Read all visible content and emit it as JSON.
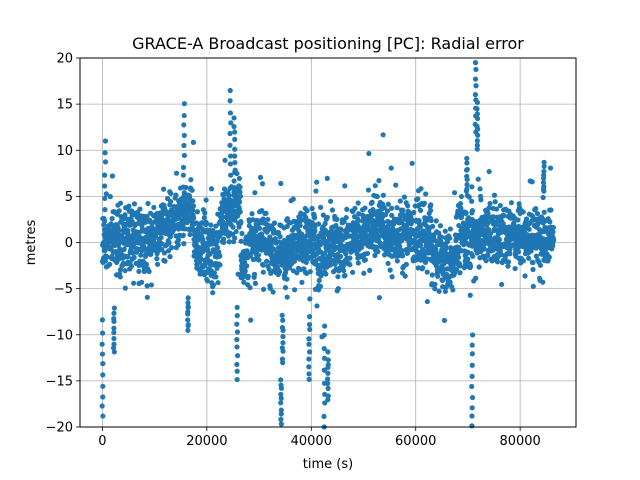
{
  "chart_data": {
    "type": "scatter",
    "title": "GRACE-A Broadcast positioning [PC]: Radial error",
    "xlabel": "time (s)",
    "ylabel": "metres",
    "xlim": [
      -4300,
      90700
    ],
    "ylim": [
      -20,
      20
    ],
    "x_ticks": [
      0,
      20000,
      40000,
      60000,
      80000
    ],
    "x_tick_labels": [
      "0",
      "20000",
      "40000",
      "60000",
      "80000"
    ],
    "y_ticks": [
      -20,
      -15,
      -10,
      -5,
      0,
      5,
      10,
      15,
      20
    ],
    "y_tick_labels": [
      "−20",
      "−15",
      "−10",
      "−5",
      "0",
      "5",
      "10",
      "15",
      "20"
    ],
    "grid": true,
    "marker_color": "#1f77b4",
    "sample_interval_s": 30,
    "segments": [
      {
        "x": [
          0,
          1500
        ],
        "center": [
          0,
          0
        ],
        "spread": 2.5
      },
      {
        "x": [
          1500,
          7000
        ],
        "center": [
          0.5,
          0.5
        ],
        "spread": 2.8
      },
      {
        "x": [
          7000,
          12000
        ],
        "center": [
          0,
          1.5
        ],
        "spread": 2.8
      },
      {
        "x": [
          12000,
          17500
        ],
        "center": [
          2,
          3.5
        ],
        "spread": 2.2
      },
      {
        "x": [
          17500,
          22500
        ],
        "center": [
          0,
          -1
        ],
        "spread": 2.8
      },
      {
        "x": [
          22500,
          26500
        ],
        "center": [
          2.5,
          4
        ],
        "spread": 2.6
      },
      {
        "x": [
          26500,
          30500
        ],
        "center": [
          -2,
          1
        ],
        "spread": 2.8
      },
      {
        "x": [
          30500,
          35000
        ],
        "center": [
          0.5,
          -1
        ],
        "spread": 2.6
      },
      {
        "x": [
          35000,
          41000
        ],
        "center": [
          -1,
          0.5
        ],
        "spread": 2.8
      },
      {
        "x": [
          41000,
          45000
        ],
        "center": [
          -1.5,
          0
        ],
        "spread": 2.8
      },
      {
        "x": [
          45000,
          49000
        ],
        "center": [
          -1,
          1
        ],
        "spread": 2.6
      },
      {
        "x": [
          49000,
          54000
        ],
        "center": [
          0.5,
          2.5
        ],
        "spread": 2.6
      },
      {
        "x": [
          54000,
          59000
        ],
        "center": [
          0.5,
          1.5
        ],
        "spread": 2.6
      },
      {
        "x": [
          59000,
          63000
        ],
        "center": [
          1,
          0.5
        ],
        "spread": 2.8
      },
      {
        "x": [
          63000,
          67500
        ],
        "center": [
          -1.5,
          -2.5
        ],
        "spread": 2.4
      },
      {
        "x": [
          67500,
          71000
        ],
        "center": [
          0,
          1.5
        ],
        "spread": 2.8
      },
      {
        "x": [
          71000,
          75500
        ],
        "center": [
          0.5,
          1
        ],
        "spread": 2.6
      },
      {
        "x": [
          75500,
          80000
        ],
        "center": [
          0.5,
          1.5
        ],
        "spread": 2.6
      },
      {
        "x": [
          80000,
          86400
        ],
        "center": [
          0.5,
          1
        ],
        "spread": 2.6
      }
    ],
    "excursions": [
      {
        "x": 0,
        "y": [
          -19,
          -8.5
        ]
      },
      {
        "x": 500,
        "y": [
          0,
          11
        ]
      },
      {
        "x": 2200,
        "y": [
          -12,
          -7
        ]
      },
      {
        "x": 15600,
        "y": [
          5,
          15
        ]
      },
      {
        "x": 16400,
        "y": [
          -9.5,
          -6
        ]
      },
      {
        "x": 24500,
        "y": [
          6,
          16.5
        ]
      },
      {
        "x": 25300,
        "y": [
          6,
          13.5
        ]
      },
      {
        "x": 25800,
        "y": [
          -15,
          -7
        ]
      },
      {
        "x": 34200,
        "y": [
          -19.5,
          -15
        ]
      },
      {
        "x": 34500,
        "y": [
          -13,
          -8
        ]
      },
      {
        "x": 39600,
        "y": [
          -15,
          -8
        ]
      },
      {
        "x": 42500,
        "y": [
          -20,
          -9
        ]
      },
      {
        "x": 43200,
        "y": [
          -17,
          -12
        ]
      },
      {
        "x": 69800,
        "y": [
          5,
          9
        ]
      },
      {
        "x": 70800,
        "y": [
          -20,
          -10
        ]
      },
      {
        "x": 71500,
        "y": [
          12,
          19.5
        ]
      },
      {
        "x": 71800,
        "y": [
          10,
          15
        ]
      },
      {
        "x": 84500,
        "y": [
          5,
          8.5
        ]
      }
    ]
  }
}
